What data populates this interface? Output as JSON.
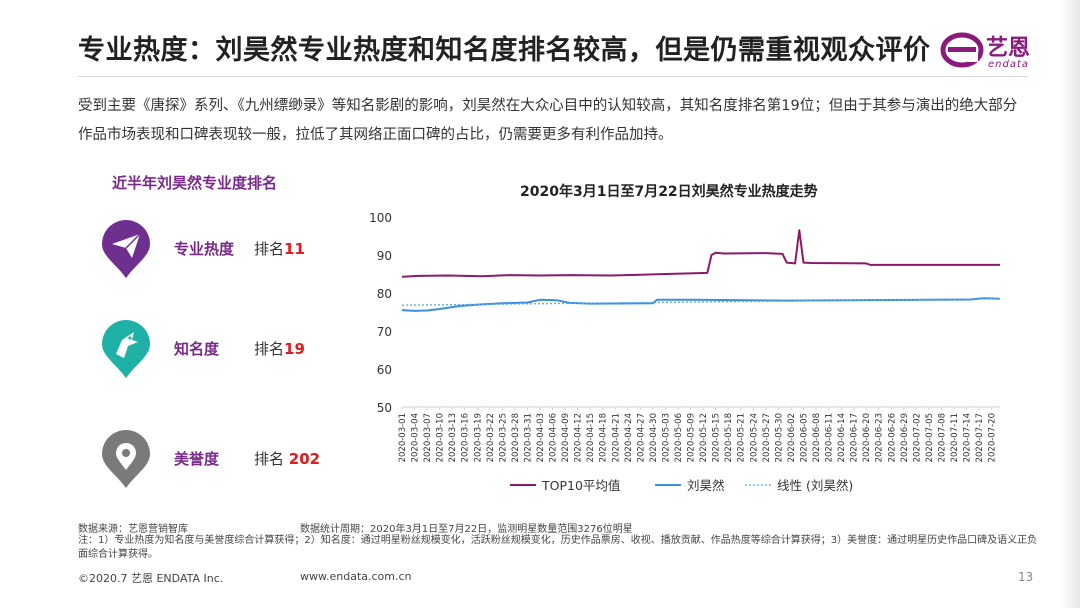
{
  "header": {
    "title": "专业热度：刘昊然专业热度和知名度排名较高，但是仍需重视观众评价",
    "logo_cn": "艺恩",
    "logo_en": "endata"
  },
  "intro": "受到主要《唐探》系列、《九州缥缈录》等知名影剧的影响，刘昊然在大众心目中的认知较高，其知名度排名第19位；但由于其参与演出的绝大部分作品市场表现和口碑表现较一般，拉低了其网络正面口碑的占比，仍需要更多有利作品加持。",
  "rankings": {
    "title": "近半年刘昊然专业度排名",
    "items": [
      {
        "label": "专业热度",
        "prefix": "排名",
        "value": "11",
        "icon": "paper-plane-icon",
        "color": "#6f2f8f"
      },
      {
        "label": "知名度",
        "prefix": "排名",
        "value": "19",
        "icon": "bird-icon",
        "color": "#1fb0a8"
      },
      {
        "label": "美誉度",
        "prefix": "排名 ",
        "value": "202",
        "icon": "location-pin-icon",
        "color": "#7a7a7a"
      }
    ]
  },
  "chart_data": {
    "type": "line",
    "title": "2020年3月1日至7月22日刘昊然专业热度走势",
    "ylim": [
      50,
      100
    ],
    "yticks": [
      50,
      60,
      70,
      80,
      90,
      100
    ],
    "x_tick_labels": [
      "2020-03-01",
      "2020-03-04",
      "2020-03-07",
      "2020-03-10",
      "2020-03-13",
      "2020-03-16",
      "2020-03-19",
      "2020-03-22",
      "2020-03-25",
      "2020-03-28",
      "2020-03-31",
      "2020-04-03",
      "2020-04-06",
      "2020-04-09",
      "2020-04-12",
      "2020-04-15",
      "2020-04-18",
      "2020-04-21",
      "2020-04-24",
      "2020-04-27",
      "2020-04-30",
      "2020-05-03",
      "2020-05-06",
      "2020-05-09",
      "2020-05-12",
      "2020-05-15",
      "2020-05-18",
      "2020-05-21",
      "2020-05-24",
      "2020-05-27",
      "2020-05-30",
      "2020-06-02",
      "2020-06-05",
      "2020-06-08",
      "2020-06-11",
      "2020-06-14",
      "2020-06-17",
      "2020-06-20",
      "2020-06-23",
      "2020-06-26",
      "2020-06-29",
      "2020-07-02",
      "2020-07-05",
      "2020-07-08",
      "2020-07-11",
      "2020-07-14",
      "2020-07-17",
      "2020-07-20"
    ],
    "x_start": "2020-03-01",
    "x_end": "2020-07-22",
    "series": [
      {
        "name": "TOP10平均值",
        "color": "#8b1a6b",
        "style": "solid",
        "points": [
          [
            "2020-03-01",
            84.3
          ],
          [
            "2020-03-05",
            84.5
          ],
          [
            "2020-03-12",
            84.6
          ],
          [
            "2020-03-20",
            84.4
          ],
          [
            "2020-03-27",
            84.7
          ],
          [
            "2020-04-03",
            84.6
          ],
          [
            "2020-04-10",
            84.7
          ],
          [
            "2020-04-20",
            84.6
          ],
          [
            "2020-04-27",
            84.8
          ],
          [
            "2020-05-03",
            85.0
          ],
          [
            "2020-05-10",
            85.2
          ],
          [
            "2020-05-13",
            85.3
          ],
          [
            "2020-05-14",
            90.0
          ],
          [
            "2020-05-15",
            90.6
          ],
          [
            "2020-05-17",
            90.4
          ],
          [
            "2020-05-27",
            90.5
          ],
          [
            "2020-05-29",
            90.4
          ],
          [
            "2020-05-31",
            90.3
          ],
          [
            "2020-06-01",
            88.0
          ],
          [
            "2020-06-03",
            87.8
          ],
          [
            "2020-06-04",
            96.5
          ],
          [
            "2020-06-05",
            88.0
          ],
          [
            "2020-06-07",
            87.9
          ],
          [
            "2020-06-20",
            87.8
          ],
          [
            "2020-06-21",
            87.4
          ],
          [
            "2020-07-22",
            87.4
          ]
        ]
      },
      {
        "name": "刘昊然",
        "color": "#3b8fe0",
        "style": "solid",
        "points": [
          [
            "2020-03-01",
            75.5
          ],
          [
            "2020-03-04",
            75.3
          ],
          [
            "2020-03-07",
            75.4
          ],
          [
            "2020-03-10",
            75.8
          ],
          [
            "2020-03-15",
            76.6
          ],
          [
            "2020-03-20",
            77.0
          ],
          [
            "2020-03-25",
            77.3
          ],
          [
            "2020-03-31",
            77.5
          ],
          [
            "2020-04-03",
            78.2
          ],
          [
            "2020-04-07",
            78.1
          ],
          [
            "2020-04-10",
            77.4
          ],
          [
            "2020-04-15",
            77.2
          ],
          [
            "2020-04-30",
            77.3
          ],
          [
            "2020-05-01",
            78.2
          ],
          [
            "2020-05-10",
            78.2
          ],
          [
            "2020-06-01",
            78.0
          ],
          [
            "2020-07-15",
            78.3
          ],
          [
            "2020-07-18",
            78.6
          ],
          [
            "2020-07-22",
            78.5
          ]
        ]
      },
      {
        "name": "线性 (刘昊然)",
        "color": "#5aa8e8",
        "style": "dotted",
        "points": [
          [
            "2020-03-01",
            76.8
          ],
          [
            "2020-07-22",
            78.5
          ]
        ]
      }
    ],
    "legend_position": "bottom",
    "grid": false
  },
  "footer": {
    "source": "数据来源：艺恩营销智库",
    "period": "数据统计周期：2020年3月1日至7月22日，监测明星数量范围3276位明星",
    "note": "注：1）专业热度为知名度与美誉度综合计算获得；2）知名度：通过明星粉丝规模变化，活跃粉丝规模变化，历史作品票房、收视、播放贡献、作品热度等综合计算获得；3）美誉度：通过明星历史作品口碑及语义正负面综合计算获得。",
    "copyright": "©2020.7 艺恩 ENDATA Inc.",
    "url": "www.endata.com.cn",
    "page": "13"
  }
}
